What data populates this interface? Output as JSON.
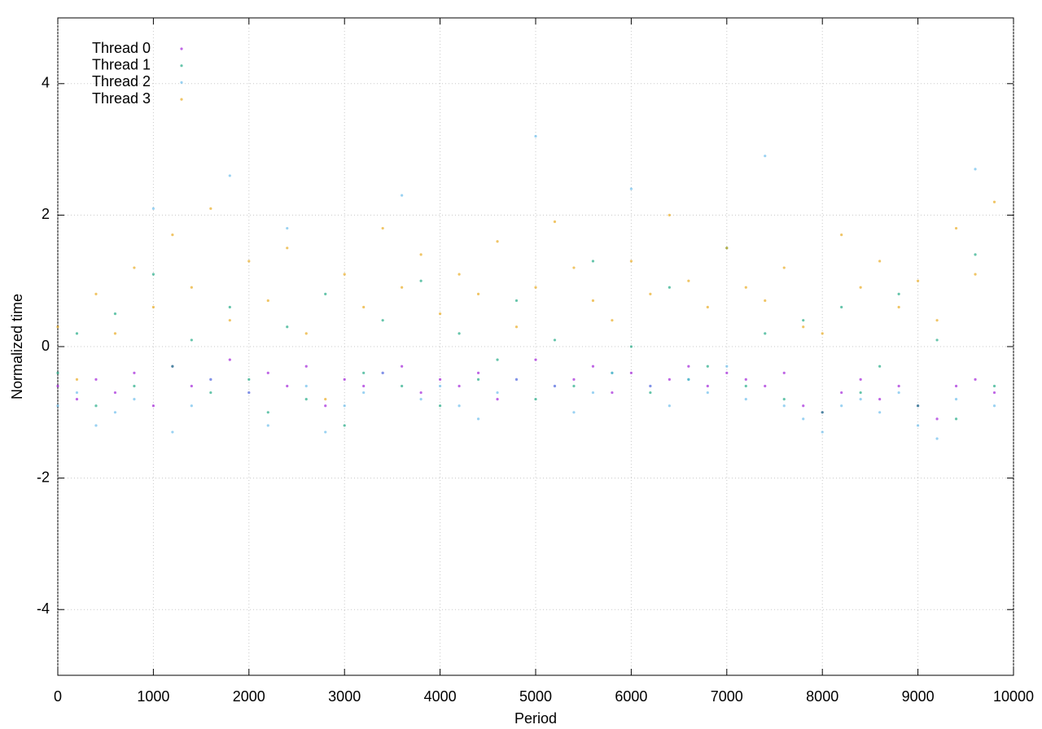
{
  "chart_data": {
    "type": "scatter",
    "xlabel": "Period",
    "ylabel": "Normalized time",
    "xlim": [
      0,
      10000
    ],
    "ylim": [
      -5,
      5
    ],
    "xticks": [
      0,
      1000,
      2000,
      3000,
      4000,
      5000,
      6000,
      7000,
      8000,
      9000,
      10000
    ],
    "yticks": [
      -4,
      -2,
      0,
      2,
      4
    ],
    "grid": true,
    "legend": "top-left",
    "x": [
      0,
      200,
      400,
      600,
      800,
      1000,
      1200,
      1400,
      1600,
      1800,
      2000,
      2200,
      2400,
      2600,
      2800,
      3000,
      3200,
      3400,
      3600,
      3800,
      4000,
      4200,
      4400,
      4600,
      4800,
      5000,
      5200,
      5400,
      5600,
      5800,
      6000,
      6200,
      6400,
      6600,
      6800,
      7000,
      7200,
      7400,
      7600,
      7800,
      8000,
      8200,
      8400,
      8600,
      8800,
      9000,
      9200,
      9400,
      9600,
      9800
    ],
    "series": [
      {
        "name": "Thread 0",
        "color": "#9400d3",
        "values": [
          -0.6,
          -0.8,
          -0.5,
          -0.7,
          -0.4,
          -0.9,
          -0.3,
          -0.6,
          -0.5,
          -0.2,
          -0.7,
          -0.4,
          -0.6,
          -0.3,
          -0.9,
          -0.5,
          -0.6,
          -0.4,
          -0.3,
          -0.7,
          -0.5,
          -0.6,
          -0.4,
          -0.8,
          -0.5,
          -0.2,
          -0.6,
          -0.5,
          -0.3,
          -0.7,
          -0.4,
          -0.6,
          -0.5,
          -0.3,
          -0.6,
          -0.4,
          -0.5,
          -0.6,
          -0.4,
          -0.9,
          -1.0,
          -0.7,
          -0.5,
          -0.8,
          -0.6,
          -0.9,
          -1.1,
          -0.6,
          -0.5,
          -0.7
        ]
      },
      {
        "name": "Thread 1",
        "color": "#009e73",
        "values": [
          -0.4,
          0.2,
          -0.9,
          0.5,
          -0.6,
          1.1,
          -0.3,
          0.1,
          -0.7,
          0.6,
          -0.5,
          -1.0,
          0.3,
          -0.8,
          0.8,
          -1.2,
          -0.4,
          0.4,
          -0.6,
          1.0,
          -0.9,
          0.2,
          -0.5,
          -0.2,
          0.7,
          -0.8,
          0.1,
          -0.6,
          1.3,
          -0.4,
          0.0,
          -0.7,
          0.9,
          -0.5,
          -0.3,
          1.5,
          -0.6,
          0.2,
          -0.8,
          0.4,
          -1.0,
          0.6,
          -0.7,
          -0.3,
          0.8,
          -0.9,
          0.1,
          -1.1,
          1.4,
          -0.6
        ]
      },
      {
        "name": "Thread 2",
        "color": "#56b4e9",
        "values": [
          -0.9,
          -0.7,
          -1.2,
          -1.0,
          -0.8,
          2.1,
          -1.3,
          -0.9,
          -0.5,
          2.6,
          -0.7,
          -1.2,
          1.8,
          -0.6,
          -1.3,
          -0.9,
          -0.7,
          -0.4,
          2.3,
          -0.8,
          -0.6,
          -0.9,
          -1.1,
          -0.7,
          -0.5,
          3.2,
          -0.6,
          -1.0,
          -0.7,
          -0.4,
          2.4,
          -0.6,
          -0.9,
          -0.5,
          -0.7,
          -0.3,
          -0.8,
          2.9,
          -0.9,
          -1.1,
          -1.3,
          -0.9,
          -0.8,
          -1.0,
          -0.7,
          -1.2,
          -1.4,
          -0.8,
          2.7,
          -0.9
        ]
      },
      {
        "name": "Thread 3",
        "color": "#e69f00",
        "values": [
          0.3,
          -0.5,
          0.8,
          0.2,
          1.2,
          0.6,
          1.7,
          0.9,
          2.1,
          0.4,
          1.3,
          0.7,
          1.5,
          0.2,
          -0.8,
          1.1,
          0.6,
          1.8,
          0.9,
          1.4,
          0.5,
          1.1,
          0.8,
          1.6,
          0.3,
          0.9,
          1.9,
          1.2,
          0.7,
          0.4,
          1.3,
          0.8,
          2.0,
          1.0,
          0.6,
          1.5,
          0.9,
          0.7,
          1.2,
          0.3,
          0.2,
          1.7,
          0.9,
          1.3,
          0.6,
          1.0,
          0.4,
          1.8,
          1.1,
          2.2
        ]
      }
    ]
  }
}
